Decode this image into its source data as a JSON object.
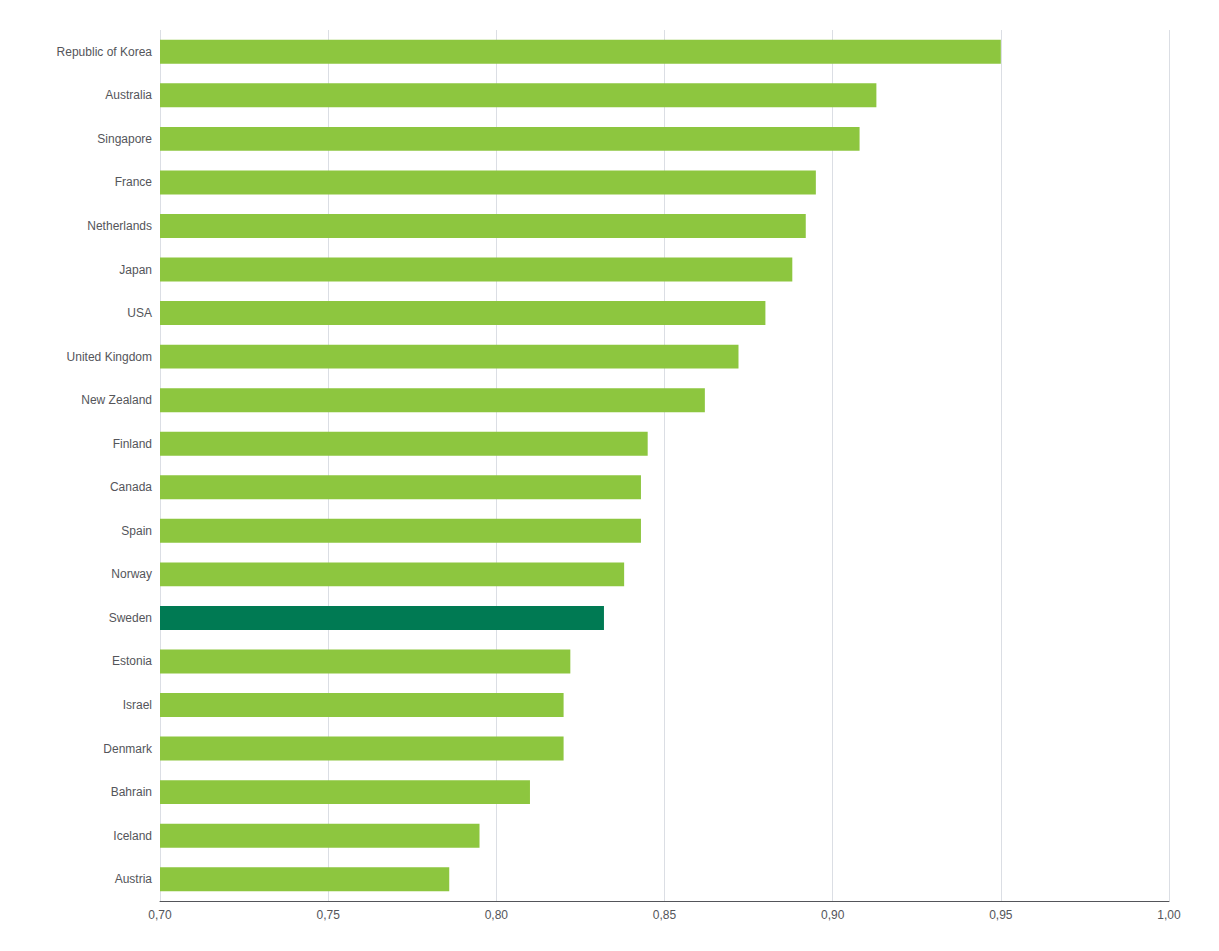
{
  "chart_data": {
    "type": "bar",
    "orientation": "horizontal",
    "categories": [
      "Austria",
      "Iceland",
      "Bahrain",
      "Denmark",
      "Israel",
      "Estonia",
      "Sweden",
      "Norway",
      "Spain",
      "Canada",
      "Finland",
      "New Zealand",
      "United Kingdom",
      "USA",
      "Japan",
      "Netherlands",
      "France",
      "Singapore",
      "Australia",
      "Republic of Korea"
    ],
    "values": [
      0.786,
      0.795,
      0.81,
      0.82,
      0.82,
      0.822,
      0.832,
      0.838,
      0.843,
      0.843,
      0.845,
      0.862,
      0.872,
      0.88,
      0.888,
      0.892,
      0.895,
      0.908,
      0.913,
      0.95
    ],
    "colors": [
      "#8dc63f",
      "#8dc63f",
      "#8dc63f",
      "#8dc63f",
      "#8dc63f",
      "#8dc63f",
      "#007a53",
      "#8dc63f",
      "#8dc63f",
      "#8dc63f",
      "#8dc63f",
      "#8dc63f",
      "#8dc63f",
      "#8dc63f",
      "#8dc63f",
      "#8dc63f",
      "#8dc63f",
      "#8dc63f",
      "#8dc63f",
      "#8dc63f"
    ],
    "xlim": [
      0.7,
      1.0
    ],
    "xticks": [
      {
        "value": 0.7,
        "label": "0,70"
      },
      {
        "value": 0.75,
        "label": "0,75"
      },
      {
        "value": 0.8,
        "label": "0,80"
      },
      {
        "value": 0.85,
        "label": "0,85"
      },
      {
        "value": 0.9,
        "label": "0,90"
      },
      {
        "value": 0.95,
        "label": "0,95"
      },
      {
        "value": 1.0,
        "label": "1,00"
      }
    ],
    "grid": true
  }
}
